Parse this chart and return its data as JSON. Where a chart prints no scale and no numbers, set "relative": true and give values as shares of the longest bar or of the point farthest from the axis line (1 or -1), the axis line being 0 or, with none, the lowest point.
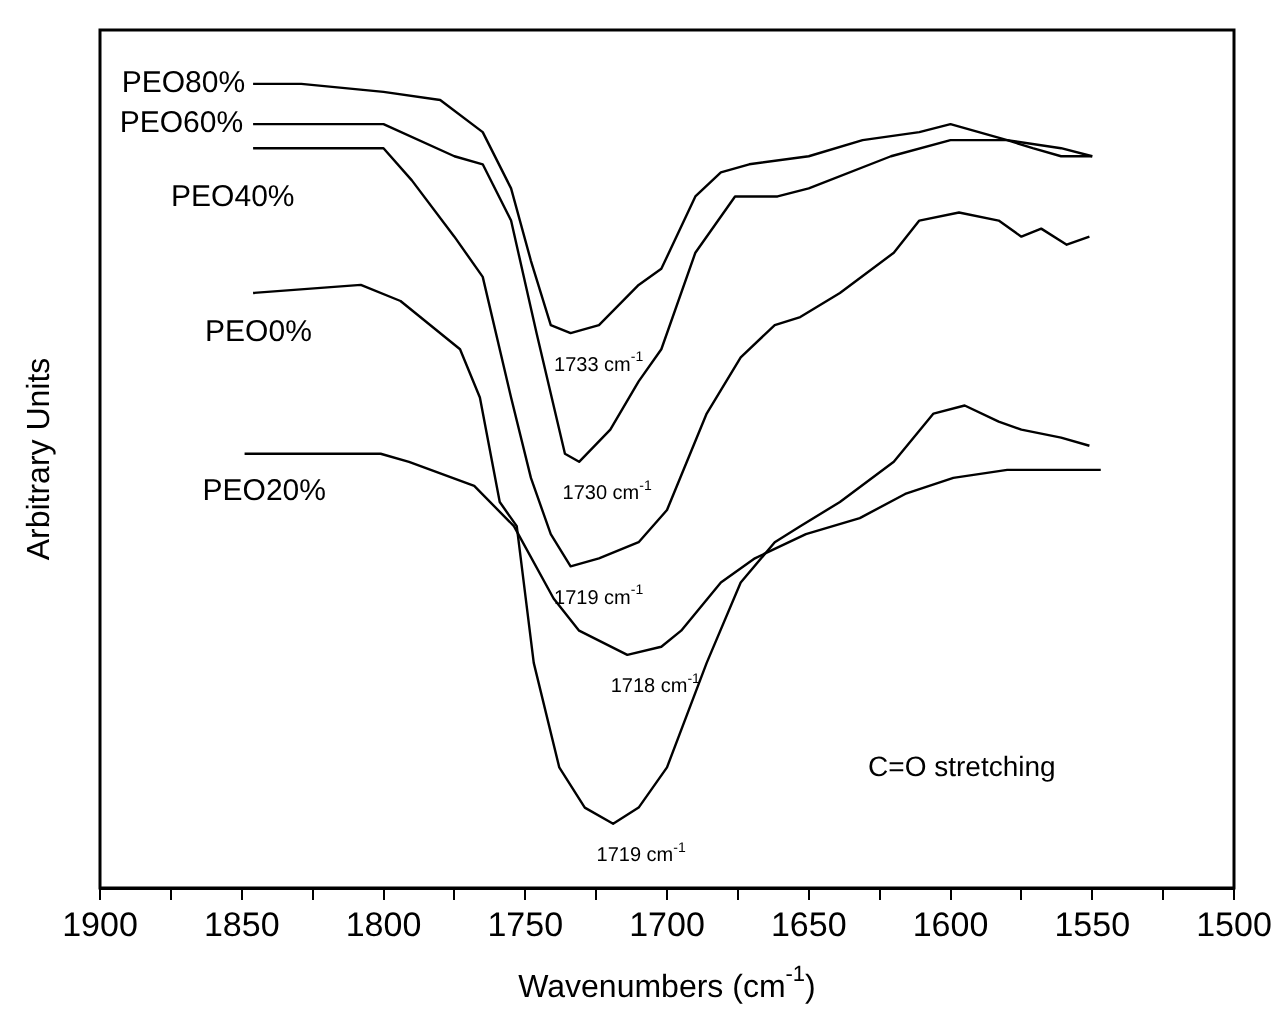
{
  "chart_data": {
    "type": "line",
    "relative": true,
    "xlabel": "Wavenumbers (cm$^{-1}$)",
    "ylabel": "Arbitrary Units",
    "xlim": [
      1900,
      1500
    ],
    "xticks": [
      1900,
      {
        "value": 1875,
        "label": null
      },
      1850,
      {
        "value": 1825,
        "label": null
      },
      1800,
      {
        "value": 1775,
        "label": null
      },
      1750,
      {
        "value": 1725,
        "label": null
      },
      1700,
      {
        "value": 1675,
        "label": null
      },
      1650,
      {
        "value": 1625,
        "label": null
      },
      1600,
      {
        "value": 1575,
        "label": null
      },
      1550,
      {
        "value": 1525,
        "label": null
      },
      1500
    ],
    "legend": false,
    "grid": false,
    "marker": "none",
    "line_style": "solid",
    "series": [
      {
        "name": "PEO80%",
        "color": "#000000",
        "x": [
          1846,
          1829,
          1800,
          1780,
          1765,
          1755,
          1748,
          1741,
          1734,
          1724,
          1710,
          1702,
          1690,
          1681,
          1671,
          1650,
          1631,
          1611,
          1600,
          1580,
          1571,
          1561,
          1550
        ],
        "values": [
          1.0,
          1.0,
          0.99,
          0.98,
          0.94,
          0.87,
          0.78,
          0.7,
          0.69,
          0.7,
          0.75,
          0.77,
          0.86,
          0.89,
          0.9,
          0.91,
          0.93,
          0.94,
          0.95,
          0.93,
          0.92,
          0.91,
          0.91
        ]
      },
      {
        "name": "PEO60%",
        "color": "#000000",
        "x": [
          1846,
          1800,
          1775,
          1765,
          1755,
          1746,
          1736,
          1731,
          1720,
          1710,
          1702,
          1690,
          1676,
          1661,
          1650,
          1621,
          1600,
          1580,
          1561,
          1550
        ],
        "values": [
          0.95,
          0.95,
          0.91,
          0.9,
          0.83,
          0.69,
          0.54,
          0.53,
          0.57,
          0.63,
          0.67,
          0.79,
          0.86,
          0.86,
          0.87,
          0.91,
          0.93,
          0.93,
          0.92,
          0.91
        ]
      },
      {
        "name": "PEO40%",
        "color": "#000000",
        "x": [
          1846,
          1800,
          1790,
          1775,
          1765,
          1755,
          1748,
          1741,
          1734,
          1724,
          1710,
          1700,
          1686,
          1674,
          1662,
          1653,
          1639,
          1620,
          1611,
          1597,
          1583,
          1575,
          1568,
          1559,
          1551
        ],
        "values": [
          0.92,
          0.92,
          0.88,
          0.81,
          0.76,
          0.61,
          0.51,
          0.44,
          0.4,
          0.41,
          0.43,
          0.47,
          0.59,
          0.66,
          0.7,
          0.71,
          0.74,
          0.79,
          0.83,
          0.84,
          0.83,
          0.81,
          0.82,
          0.8,
          0.81
        ]
      },
      {
        "name": "PEO0%",
        "color": "#000000",
        "x": [
          1846,
          1808,
          1794,
          1773,
          1766,
          1759,
          1753,
          1747,
          1738,
          1729,
          1719,
          1710,
          1700,
          1686,
          1674,
          1662,
          1653,
          1639,
          1620,
          1606,
          1595,
          1583,
          1575,
          1561,
          1551
        ],
        "values": [
          0.74,
          0.75,
          0.73,
          0.67,
          0.61,
          0.48,
          0.45,
          0.28,
          0.15,
          0.1,
          0.08,
          0.1,
          0.15,
          0.28,
          0.38,
          0.43,
          0.45,
          0.48,
          0.53,
          0.59,
          0.6,
          0.58,
          0.57,
          0.56,
          0.55
        ]
      },
      {
        "name": "PEO20%",
        "color": "#000000",
        "x": [
          1849,
          1801,
          1791,
          1768,
          1754,
          1740,
          1731,
          1714,
          1702,
          1695,
          1681,
          1669,
          1651,
          1632,
          1616,
          1599,
          1580,
          1547
        ],
        "values": [
          0.54,
          0.54,
          0.53,
          0.5,
          0.45,
          0.36,
          0.32,
          0.29,
          0.3,
          0.32,
          0.38,
          0.41,
          0.44,
          0.46,
          0.49,
          0.51,
          0.52,
          0.52
        ]
      }
    ],
    "annotations": [
      {
        "text": "1733 cm$^{-1}$",
        "x": 1734,
        "y": 0.69
      },
      {
        "text": "1730 cm$^{-1}$",
        "x": 1731,
        "y": 0.53
      },
      {
        "text": "1719 cm$^{-1}$",
        "x": 1734,
        "y": 0.4
      },
      {
        "text": "1718 cm$^{-1}$",
        "x": 1714,
        "y": 0.29
      },
      {
        "text": "1719 cm$^{-1}$",
        "x": 1719,
        "y": 0.08
      },
      "C=O stretching"
    ]
  }
}
